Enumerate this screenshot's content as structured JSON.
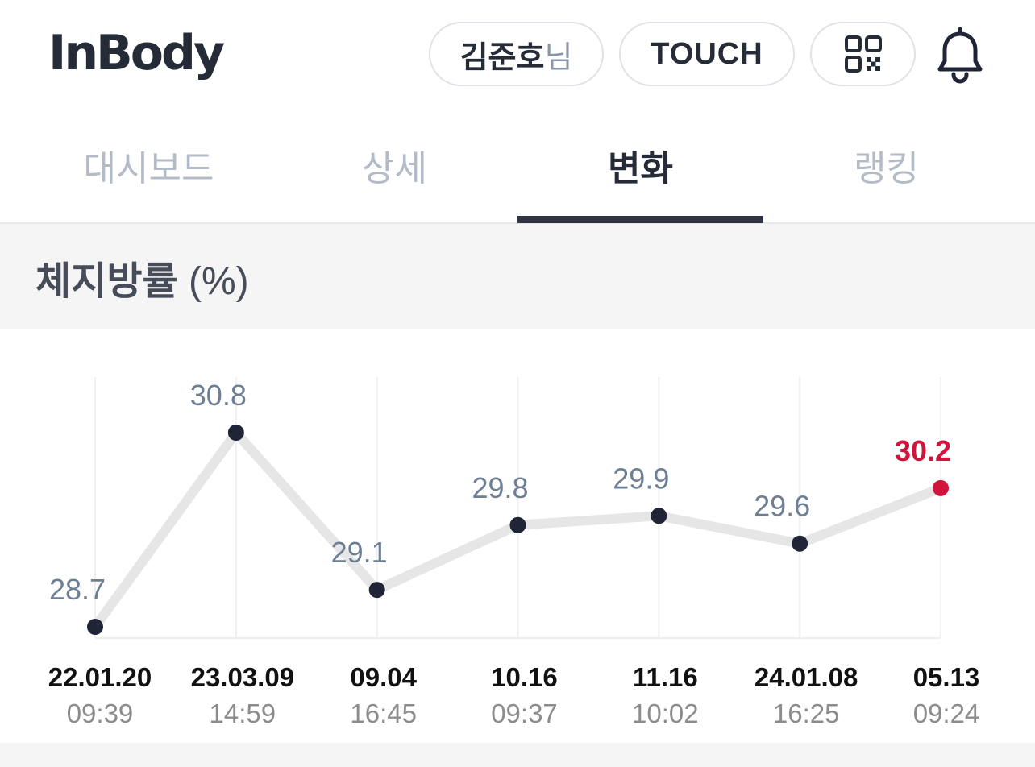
{
  "header": {
    "logo": "InBody",
    "user_name": "김준호",
    "user_suffix": "님",
    "touch_label": "TOUCH",
    "qr_icon": "qr-code-icon",
    "bell_icon": "bell-icon"
  },
  "tabs": [
    {
      "label": "대시보드",
      "active": false
    },
    {
      "label": "상세",
      "active": false
    },
    {
      "label": "변화",
      "active": true
    },
    {
      "label": "랭킹",
      "active": false
    }
  ],
  "section": {
    "title": "체지방률",
    "unit": "(%)"
  },
  "colors": {
    "line": "#e6e6e6",
    "point": "#1f2436",
    "label": "#6e7f93",
    "highlight": "#d0143c"
  },
  "chart_data": {
    "type": "line",
    "title": "",
    "xlabel": "",
    "ylabel": "",
    "x": [
      {
        "date": "22.01.20",
        "time": "09:39"
      },
      {
        "date": "23.03.09",
        "time": "14:59"
      },
      {
        "date": "09.04",
        "time": "16:45"
      },
      {
        "date": "10.16",
        "time": "09:37"
      },
      {
        "date": "11.16",
        "time": "10:02"
      },
      {
        "date": "24.01.08",
        "time": "16:25"
      },
      {
        "date": "05.13",
        "time": "09:24"
      }
    ],
    "values": [
      28.7,
      30.8,
      29.1,
      29.8,
      29.9,
      29.6,
      30.2
    ],
    "value_labels": [
      "28.7",
      "30.8",
      "29.1",
      "29.8",
      "29.9",
      "29.6",
      "30.2"
    ],
    "highlight_last": true,
    "grid": true
  }
}
